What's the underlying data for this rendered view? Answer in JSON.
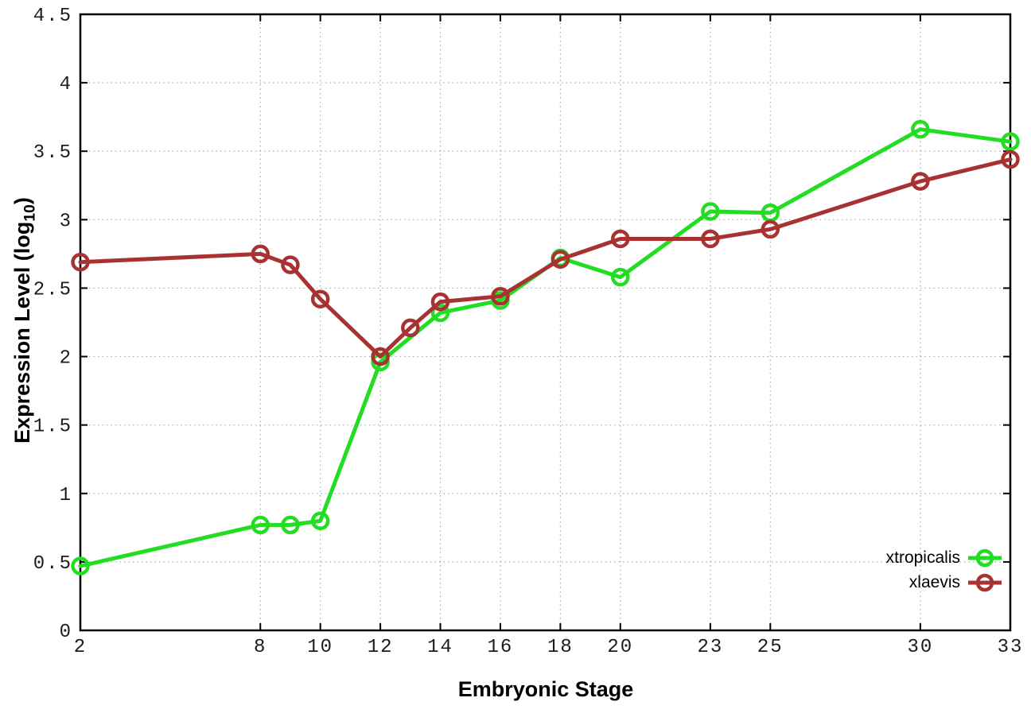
{
  "figure": {
    "background": "#ffffff",
    "border_color": "#000000",
    "grid_color": "#a9a9a9",
    "tick_label_color": "#1c1c1c"
  },
  "axes": {
    "x_title": "Embryonic Stage",
    "y_title_main": "Expression Level (log",
    "y_title_sub": "10",
    "y_title_close": ")"
  },
  "chart_data": {
    "type": "line",
    "title": "",
    "xlabel": "Embryonic Stage",
    "ylabel": "Expression Level (log10)",
    "xlim": [
      2,
      33
    ],
    "ylim": [
      0,
      4.5
    ],
    "grid": true,
    "legend_position": "inside-bottom-right",
    "x_ticks": [
      2,
      8,
      10,
      12,
      14,
      16,
      18,
      20,
      23,
      25,
      30,
      33
    ],
    "x_tick_labels": [
      "2",
      "8",
      "10",
      "12",
      "14",
      "16",
      "18",
      "20",
      "23",
      "25",
      "30",
      "33"
    ],
    "y_ticks": [
      0,
      0.5,
      1,
      1.5,
      2,
      2.5,
      3,
      3.5,
      4,
      4.5
    ],
    "y_tick_labels": [
      "0",
      "0.5",
      "1",
      "1.5",
      "2",
      "2.5",
      "3",
      "3.5",
      "4",
      "4.5"
    ],
    "series": [
      {
        "name": "xtropicalis",
        "color": "#22dd22",
        "marker": "open-circle",
        "points": [
          [
            2,
            0.47
          ],
          [
            8,
            0.77
          ],
          [
            9,
            0.77
          ],
          [
            10,
            0.8
          ],
          [
            12,
            1.96
          ],
          [
            14,
            2.32
          ],
          [
            16,
            2.41
          ],
          [
            18,
            2.72
          ],
          [
            20,
            2.58
          ],
          [
            23,
            3.06
          ],
          [
            25,
            3.05
          ],
          [
            30,
            3.66
          ],
          [
            33,
            3.57
          ]
        ]
      },
      {
        "name": "xlaevis",
        "color": "#a83232",
        "marker": "open-circle",
        "points": [
          [
            2,
            2.69
          ],
          [
            8,
            2.75
          ],
          [
            9,
            2.67
          ],
          [
            10,
            2.42
          ],
          [
            12,
            2.0
          ],
          [
            13,
            2.21
          ],
          [
            14,
            2.4
          ],
          [
            16,
            2.44
          ],
          [
            18,
            2.71
          ],
          [
            20,
            2.86
          ],
          [
            23,
            2.86
          ],
          [
            25,
            2.93
          ],
          [
            30,
            3.28
          ],
          [
            33,
            3.44
          ]
        ]
      }
    ]
  }
}
